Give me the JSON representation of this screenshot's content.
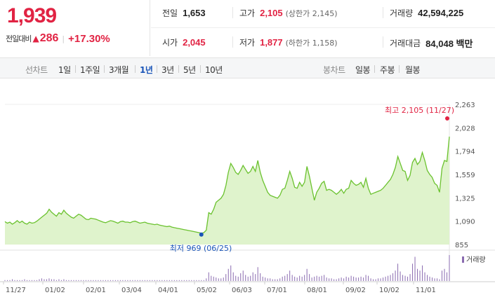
{
  "summary": {
    "price": "1,939",
    "change_label": "전일대비",
    "change_arrow": "▲",
    "change_value": "286",
    "change_rate": "+17.30%"
  },
  "stats": {
    "prev_close": {
      "label": "전일",
      "value": "1,653"
    },
    "open": {
      "label": "시가",
      "value": "2,045"
    },
    "high": {
      "label": "고가",
      "value": "2,105",
      "sub": "(상한가 2,145)"
    },
    "low": {
      "label": "저가",
      "value": "1,877",
      "sub": "(하한가 1,158)"
    },
    "volume": {
      "label": "거래량",
      "value": "42,594,225"
    },
    "amount": {
      "label": "거래대금",
      "value": "84,048 백만"
    }
  },
  "toolbar": {
    "line_label": "선차트",
    "periods": [
      "1일",
      "1주일",
      "3개월",
      "1년",
      "3년",
      "5년",
      "10년"
    ],
    "selected_period": "1년",
    "candle_label": "봉차트",
    "candles": [
      "일봉",
      "주봉",
      "월봉"
    ]
  },
  "colors": {
    "up": "#e12343",
    "down": "#1a55b8",
    "line": "#6bc22f",
    "area": "#dff3cc",
    "volume": "#8a6bb0"
  },
  "chart_data": {
    "type": "area",
    "xlabels": [
      "11/27",
      "01/02",
      "02/01",
      "03/04",
      "04/01",
      "05/02",
      "06/03",
      "07/01",
      "08/01",
      "09/02",
      "10/02",
      "11/01"
    ],
    "ylabels": [
      "2,263",
      "2,028",
      "1,794",
      "1,559",
      "1,325",
      "1,090",
      "855"
    ],
    "ylim": [
      855,
      2263
    ],
    "max_annotation": "최고 2,105 (11/27)",
    "min_annotation": "최저 969 (06/25)",
    "volume_label": "거래량",
    "values": [
      1085,
      1070,
      1080,
      1060,
      1075,
      1095,
      1075,
      1090,
      1070,
      1060,
      1080,
      1070,
      1075,
      1090,
      1110,
      1130,
      1150,
      1170,
      1210,
      1180,
      1160,
      1140,
      1175,
      1160,
      1200,
      1170,
      1150,
      1130,
      1120,
      1140,
      1160,
      1150,
      1130,
      1110,
      1105,
      1120,
      1115,
      1110,
      1100,
      1090,
      1080,
      1075,
      1085,
      1095,
      1090,
      1080,
      1070,
      1085,
      1090,
      1080,
      1080,
      1075,
      1085,
      1090,
      1080,
      1070,
      1075,
      1080,
      1070,
      1065,
      1060,
      1055,
      1060,
      1050,
      1045,
      1040,
      1035,
      1040,
      1030,
      1025,
      1020,
      1015,
      1010,
      1005,
      1000,
      995,
      990,
      985,
      980,
      975,
      969,
      975,
      1000,
      1175,
      1160,
      1210,
      1280,
      1300,
      1320,
      1360,
      1450,
      1580,
      1670,
      1630,
      1580,
      1560,
      1600,
      1650,
      1610,
      1570,
      1590,
      1640,
      1590,
      1700,
      1580,
      1500,
      1440,
      1380,
      1350,
      1340,
      1330,
      1320,
      1350,
      1410,
      1420,
      1500,
      1590,
      1520,
      1430,
      1420,
      1480,
      1440,
      1480,
      1640,
      1540,
      1420,
      1300,
      1380,
      1420,
      1470,
      1490,
      1400,
      1410,
      1400,
      1380,
      1360,
      1380,
      1410,
      1370,
      1410,
      1420,
      1500,
      1470,
      1450,
      1460,
      1480,
      1430,
      1520,
      1420,
      1360,
      1370,
      1380,
      1390,
      1400,
      1420,
      1450,
      1480,
      1510,
      1560,
      1630,
      1740,
      1670,
      1600,
      1590,
      1500,
      1550,
      1680,
      1720,
      1660,
      1690,
      1780,
      1700,
      1600,
      1560,
      1530,
      1470,
      1450,
      1380,
      1620,
      1700,
      1690,
      1939
    ],
    "volume": [
      1,
      1,
      1,
      2,
      1,
      1,
      1,
      1,
      2,
      1,
      1,
      1,
      1,
      1,
      2,
      3,
      2,
      2,
      3,
      2,
      2,
      1,
      2,
      1,
      2,
      1,
      1,
      1,
      1,
      1,
      1,
      1,
      1,
      1,
      1,
      1,
      1,
      1,
      1,
      1,
      1,
      1,
      1,
      1,
      1,
      1,
      1,
      1,
      1,
      1,
      1,
      1,
      1,
      1,
      1,
      1,
      1,
      1,
      1,
      1,
      1,
      1,
      1,
      1,
      1,
      1,
      1,
      1,
      1,
      1,
      1,
      1,
      1,
      1,
      1,
      1,
      1,
      1,
      1,
      1,
      1,
      1,
      3,
      10,
      6,
      5,
      4,
      3,
      3,
      4,
      8,
      14,
      18,
      10,
      6,
      5,
      9,
      12,
      7,
      5,
      6,
      10,
      8,
      16,
      9,
      5,
      4,
      3,
      3,
      2,
      2,
      2,
      3,
      5,
      6,
      8,
      12,
      7,
      5,
      4,
      6,
      5,
      7,
      14,
      8,
      4,
      5,
      6,
      5,
      6,
      7,
      4,
      3,
      3,
      2,
      2,
      3,
      4,
      3,
      5,
      4,
      6,
      5,
      4,
      4,
      5,
      4,
      7,
      6,
      3,
      2,
      2,
      3,
      3,
      4,
      5,
      6,
      7,
      9,
      12,
      20,
      11,
      7,
      6,
      5,
      8,
      20,
      28,
      14,
      12,
      18,
      10,
      7,
      5,
      4,
      3,
      3,
      2,
      12,
      14,
      10,
      30
    ]
  }
}
